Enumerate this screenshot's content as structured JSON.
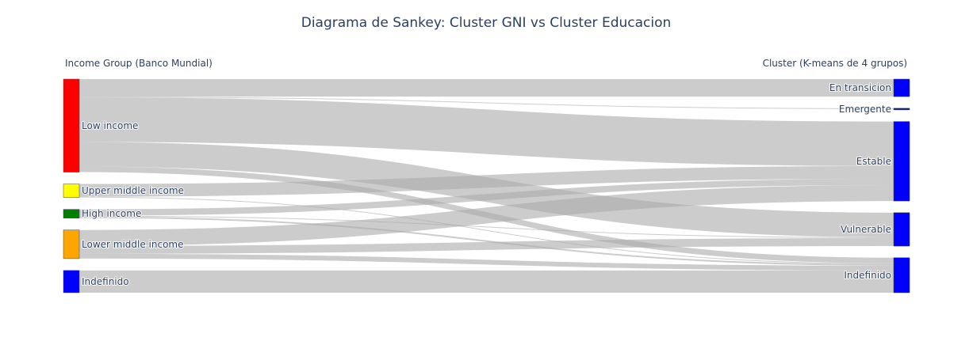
{
  "chart_data": {
    "type": "sankey",
    "title": "Diagrama de Sankey: Cluster GNI vs Cluster Educacion",
    "left_header": "Income Group (Banco Mundial)",
    "right_header": "Cluster (K-means de 4 grupos)",
    "link_color": "#aaaaaa",
    "sources": [
      {
        "name": "Low income",
        "color": "#ff0000"
      },
      {
        "name": "Upper middle income",
        "color": "#ffff00"
      },
      {
        "name": "High income",
        "color": "#008000"
      },
      {
        "name": "Lower middle income",
        "color": "#ffa500"
      },
      {
        "name": "Indefinido",
        "color": "#0000ff"
      }
    ],
    "targets": [
      {
        "name": "En transicion",
        "color": "#0000ff"
      },
      {
        "name": "Emergente",
        "color": "#0000ff"
      },
      {
        "name": "Estable",
        "color": "#0000ff"
      },
      {
        "name": "Vulnerable",
        "color": "#0000ff"
      },
      {
        "name": "Indefinido",
        "color": "#0000ff"
      }
    ],
    "links": [
      {
        "source": "Low income",
        "target": "En transicion",
        "value": 22
      },
      {
        "source": "Low income",
        "target": "Emergente",
        "value": 1
      },
      {
        "source": "Low income",
        "target": "Estable",
        "value": 56
      },
      {
        "source": "Low income",
        "target": "Vulnerable",
        "value": 31
      },
      {
        "source": "Low income",
        "target": "Indefinido",
        "value": 7
      },
      {
        "source": "Upper middle income",
        "target": "Estable",
        "value": 16
      },
      {
        "source": "Upper middle income",
        "target": "Indefinido",
        "value": 1
      },
      {
        "source": "High income",
        "target": "Estable",
        "value": 8
      },
      {
        "source": "High income",
        "target": "Vulnerable",
        "value": 1
      },
      {
        "source": "High income",
        "target": "Indefinido",
        "value": 2
      },
      {
        "source": "Lower middle income",
        "target": "Estable",
        "value": 20
      },
      {
        "source": "Lower middle income",
        "target": "Vulnerable",
        "value": 10
      },
      {
        "source": "Lower middle income",
        "target": "Indefinido",
        "value": 6
      },
      {
        "source": "Indefinido",
        "target": "Indefinido",
        "value": 28
      }
    ]
  }
}
